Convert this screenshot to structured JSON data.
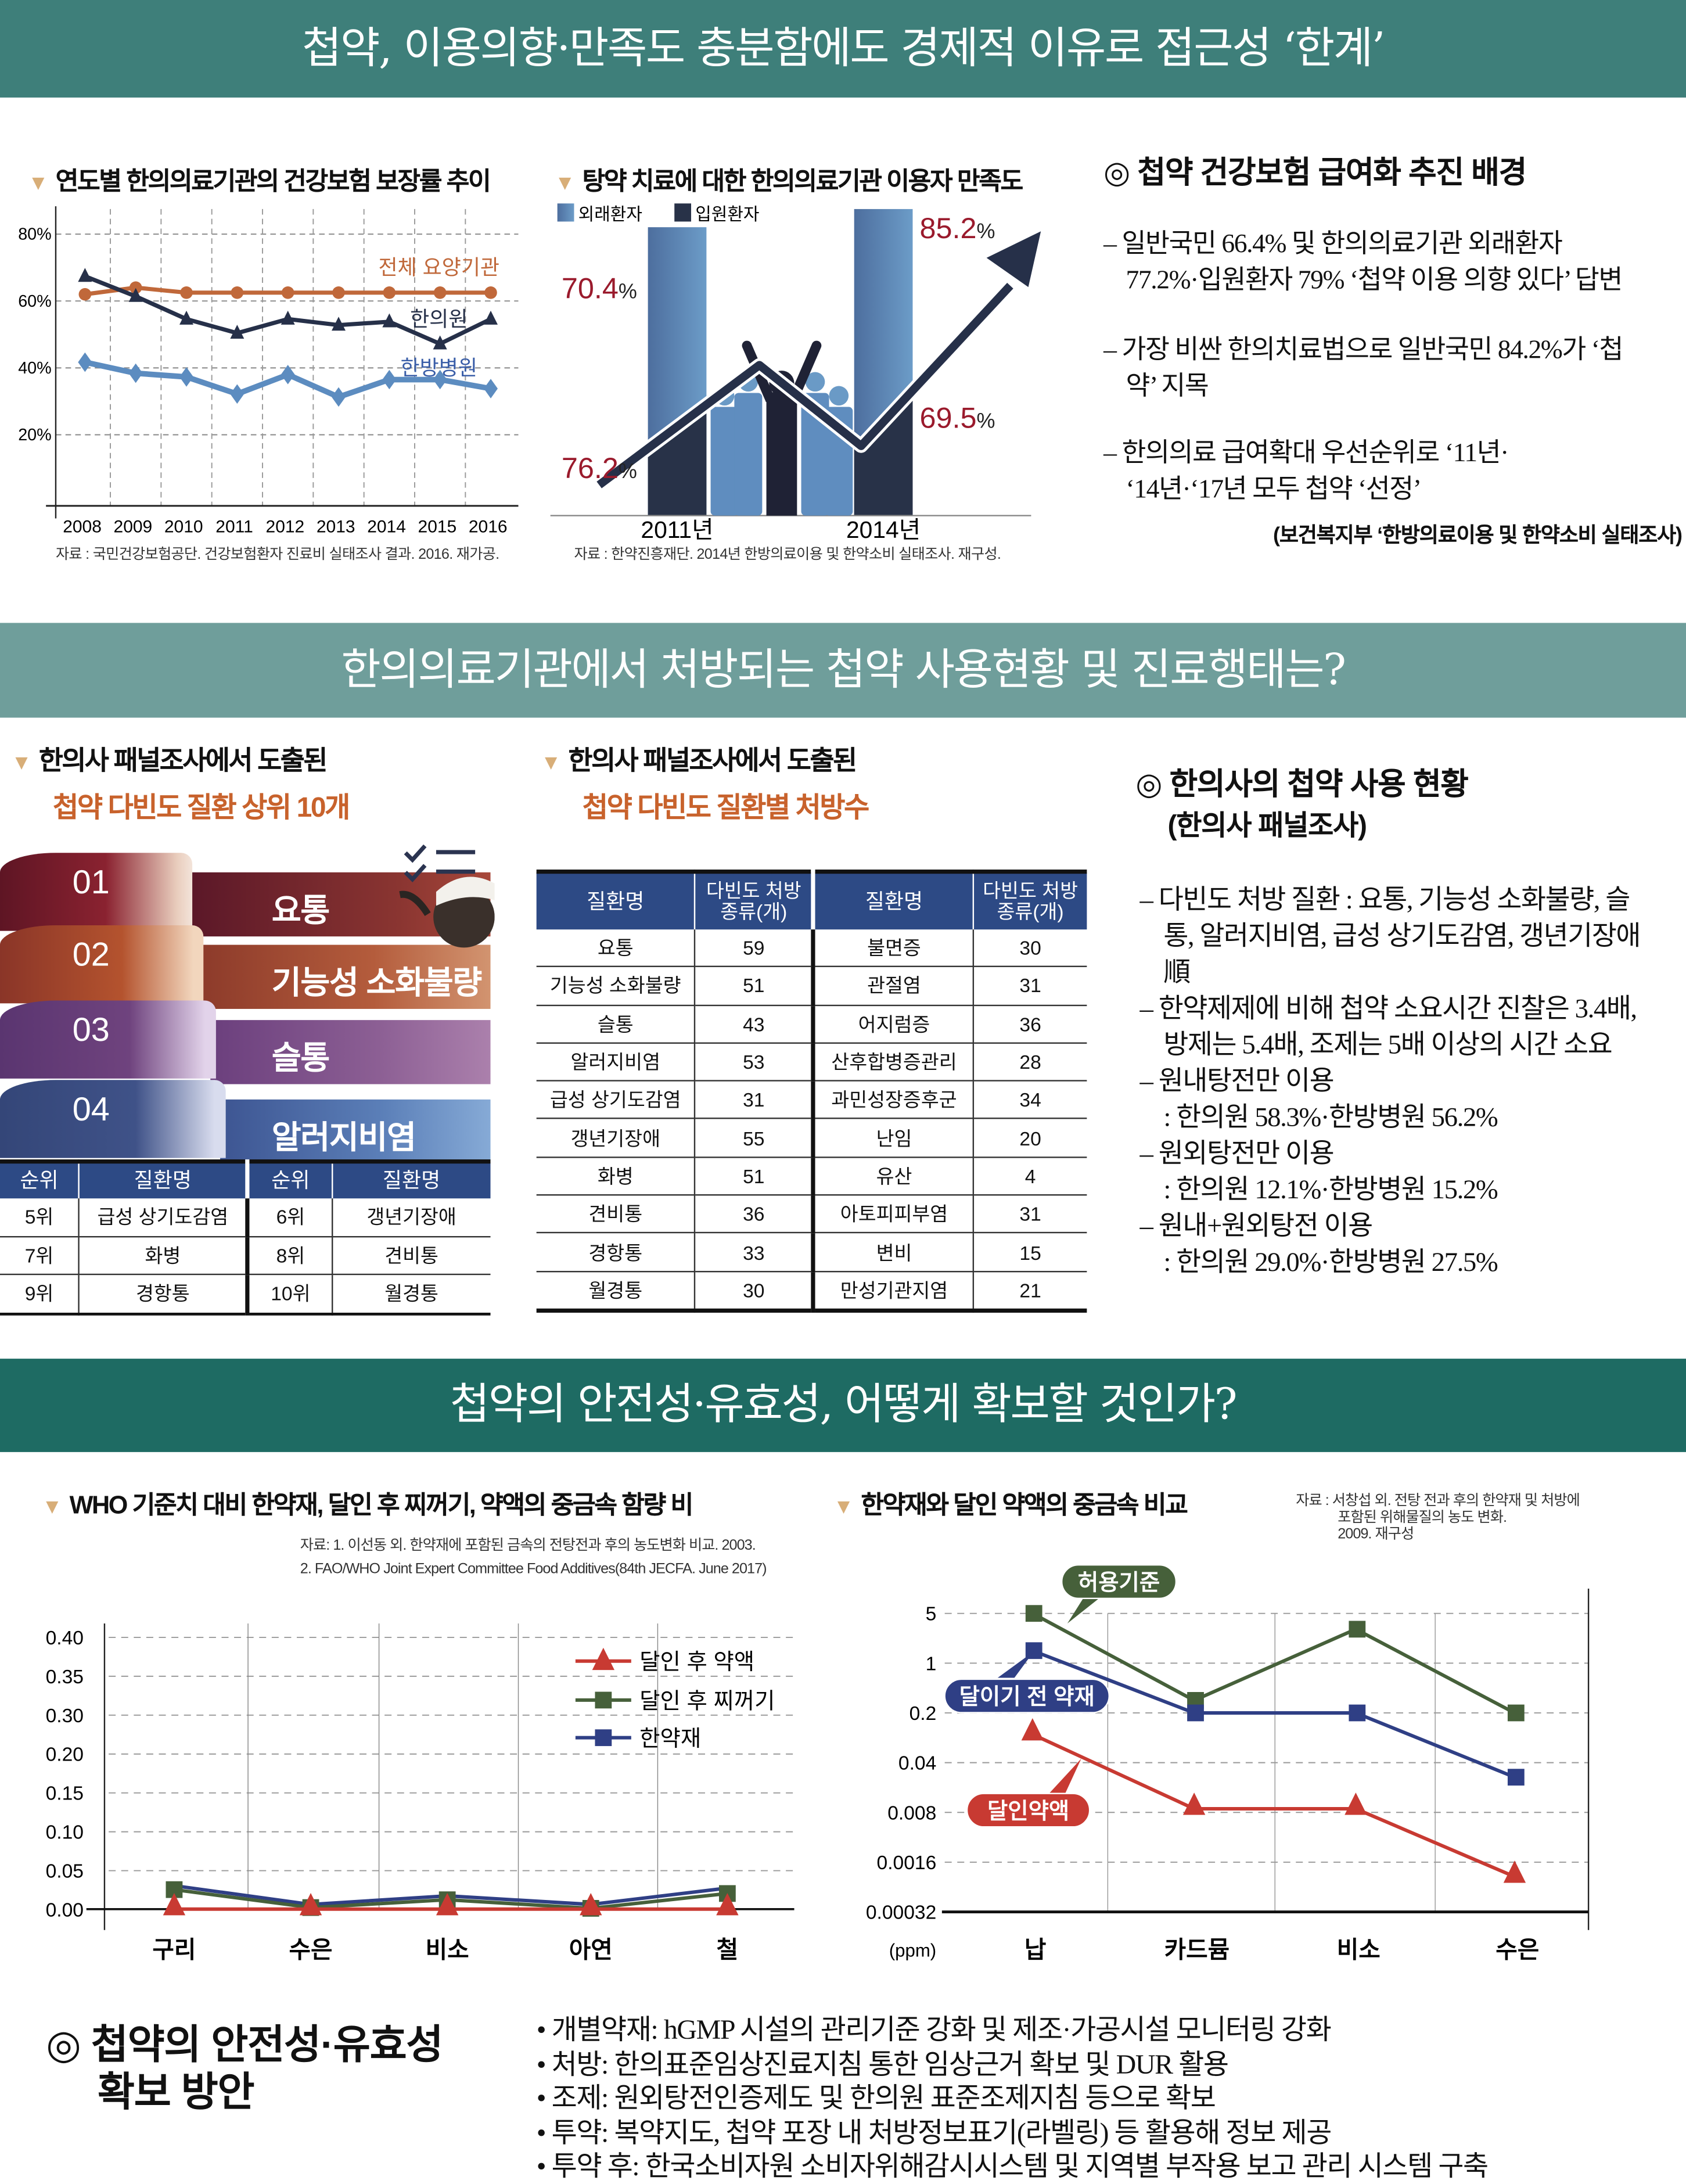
{
  "header1": {
    "title": "첩약, 이용의향·만족도 충분함에도 경제적 이유로 접근성 ‘한계’"
  },
  "header2": {
    "title": "한의의료기관에서 처방되는 첩약 사용현황 및 진료행태는?"
  },
  "header3": {
    "title": "첩약의 안전성·유효성, 어떻게 확보할 것인가?"
  },
  "colors": {
    "header1": "#3e7f7a",
    "header2": "#6f9e9b",
    "header3": "#1e6b63",
    "table_header": "#2d4a85",
    "accent_orange": "#c8622c",
    "value_red": "#9a1a2c",
    "title_marker": "#d8ae78"
  },
  "chart_data": [
    {
      "type": "line",
      "title": "연도별 한의의료기관의 건강보험 보장률 추이",
      "x": [
        "2008",
        "2009",
        "2010",
        "2011",
        "2012",
        "2013",
        "2014",
        "2015",
        "2016"
      ],
      "ytick_labels": [
        "80%",
        "60%",
        "40%",
        "20%"
      ],
      "yticks": [
        80,
        60,
        40,
        20
      ],
      "ylim": [
        0,
        85
      ],
      "grid": true,
      "series": [
        {
          "name": "전체 요양기관",
          "color": "#c0683a",
          "marker": "circle",
          "values": [
            62,
            64,
            62.5,
            62.5,
            62.5,
            62.5,
            62.5,
            62.5,
            62.5
          ]
        },
        {
          "name": "한의원",
          "color": "#263049",
          "marker": "triangle",
          "values": [
            67.4,
            61.4,
            54.6,
            50.4,
            54.6,
            52.8,
            53.8,
            47.2,
            54.6
          ]
        },
        {
          "name": "한방병원",
          "color": "#5c8cc0",
          "label_color": "#3a5ea8",
          "marker": "diamond",
          "values": [
            41.7,
            38.4,
            37.3,
            32.2,
            38,
            31.3,
            36.5,
            36.5,
            33.8
          ]
        }
      ],
      "source": "자료 : 국민건강보험공단. 건강보험환자 진료비 실태조사 결과. 2016. 재가공."
    },
    {
      "type": "bar",
      "title": "탕약 치료에 대한 한의의료기관 이용자 만족도",
      "categories": [
        "2011년",
        "2014년"
      ],
      "unit": "%",
      "series": [
        {
          "name": "외래환자",
          "color": "#5f8dbf",
          "values": [
            70.4,
            85.2
          ]
        },
        {
          "name": "입원환자",
          "color": "#283248",
          "values": [
            76.2,
            69.5
          ]
        }
      ],
      "source": "자료 : 한약진흥재단. 2014년 한방의료이용 및 한약소비 실태조사. 재구성."
    },
    {
      "type": "line",
      "title": "WHO 기준치 대비 한약재, 달인 후 찌꺼기, 약액의 중금속 함량 비",
      "source_lines": [
        "자료: 1. 이선동 외. 한약재에 포함된 금속의 전탕전과 후의 농도변화 비교. 2003.",
        "2. FAO/WHO Joint Expert Committee Food Additives(84th JECFA. June 2017)"
      ],
      "categories": [
        "구리",
        "수은",
        "비소",
        "아연",
        "철"
      ],
      "ytick_labels": [
        "0.40",
        "0.35",
        "0.30",
        "0.20",
        "0.15",
        "0.10",
        "0.05",
        "0.00"
      ],
      "ylim": [
        0,
        0.4
      ],
      "grid": true,
      "legend": "top-right",
      "series": [
        {
          "name": "달인 후 약액",
          "color": "#c83a32",
          "marker": "triangle",
          "values": [
            0,
            0,
            0,
            0,
            0
          ]
        },
        {
          "name": "달인 후 찌꺼기",
          "color": "#46603a",
          "marker": "square",
          "values": [
            0.025,
            0.002,
            0.012,
            0.001,
            0.02
          ]
        },
        {
          "name": "한약재",
          "color": "#2f3f85",
          "marker": "square",
          "values": [
            0.03,
            0.006,
            0.017,
            0.006,
            0.027
          ]
        }
      ]
    },
    {
      "type": "line",
      "title": "한약재와 달인 약액의 중금속 비교",
      "source_lines": [
        "자료 : 서창섭 외. 전탕 전과 후의 한약재 및 처방에",
        "포함된 위해물질의 농도 변화.",
        "2009. 재구성"
      ],
      "categories": [
        "납",
        "카드뮴",
        "비소",
        "수은"
      ],
      "yscale": "log",
      "yticks": [
        5,
        1,
        0.2,
        0.04,
        0.008,
        0.0016,
        0.00032
      ],
      "ytick_labels": [
        "5",
        "1",
        "0.2",
        "0.04",
        "0.008",
        "0.0016",
        "0.00032"
      ],
      "ylim": [
        0.00032,
        5
      ],
      "unit": "(ppm)",
      "grid": true,
      "series": [
        {
          "name": "허용기준",
          "color": "#46603a",
          "marker": "square",
          "values": [
            5,
            0.3,
            3,
            0.2
          ]
        },
        {
          "name": "달이기 전 약재",
          "color": "#2f3f85",
          "marker": "square",
          "values": [
            1.5,
            0.2,
            0.2,
            0.025
          ]
        },
        {
          "name": "달인약액",
          "color": "#c83a32",
          "marker": "triangle",
          "values": [
            0.1,
            0.009,
            0.009,
            0.001
          ]
        }
      ]
    }
  ],
  "background": {
    "title": "◎ 첩약 건강보험 급여화 추진 배경",
    "items": [
      [
        "– 일반국민 66.4% 및 한의의료기관 외래환자",
        "77.2%·입원환자 79% ‘첩약 이용 의향 있다’ 답변"
      ],
      [
        "– 가장 비싼 한의치료법으로 일반국민 84.2%가 ‘첩",
        "약’ 지목"
      ],
      [
        "– 한의의료 급여확대 우선순위로 ‘11년·",
        "‘14년·‘17년 모두 첩약 ‘선정’"
      ]
    ],
    "source": "(보건복지부 ‘한방의료이용 및 한약소비 실태조사)"
  },
  "ranking": {
    "title_line1": "한의사 패널조사에서 도출된",
    "title_line2": "첩약 다빈도 질환 상위 10개",
    "top": [
      {
        "rank": "01",
        "name": "요통"
      },
      {
        "rank": "02",
        "name": "기능성 소화불량"
      },
      {
        "rank": "03",
        "name": "슬통"
      },
      {
        "rank": "04",
        "name": "알러지비염"
      }
    ],
    "table_headers": [
      "순위",
      "질환명",
      "순위",
      "질환명"
    ],
    "table_rows": [
      [
        "5위",
        "급성 상기도감염",
        "6위",
        "갱년기장애"
      ],
      [
        "7위",
        "화병",
        "8위",
        "견비통"
      ],
      [
        "9위",
        "경항통",
        "10위",
        "월경통"
      ]
    ]
  },
  "prescriptions": {
    "title_line1": "한의사 패널조사에서 도출된",
    "title_line2": "첩약 다빈도 질환별 처방수",
    "headers": [
      "질환명",
      "다빈도 처방 종류(개)",
      "질환명",
      "다빈도 처방 종류(개)"
    ],
    "rows": [
      [
        "요통",
        "59",
        "불면증",
        "30"
      ],
      [
        "기능성 소화불량",
        "51",
        "관절염",
        "31"
      ],
      [
        "슬통",
        "43",
        "어지럼증",
        "36"
      ],
      [
        "알러지비염",
        "53",
        "산후합병증관리",
        "28"
      ],
      [
        "급성 상기도감염",
        "31",
        "과민성장증후군",
        "34"
      ],
      [
        "갱년기장애",
        "55",
        "난임",
        "20"
      ],
      [
        "화병",
        "51",
        "유산",
        "4"
      ],
      [
        "견비통",
        "36",
        "아토피피부염",
        "31"
      ],
      [
        "경항통",
        "33",
        "변비",
        "15"
      ],
      [
        "월경통",
        "30",
        "만성기관지염",
        "21"
      ]
    ]
  },
  "usage": {
    "title": "◎ 한의사의 첩약 사용 현황",
    "subtitle": "(한의사 패널조사)",
    "lines": [
      "– 다빈도 처방 질환 : 요통, 기능성 소화불량, 슬",
      "통, 알러지비염, 급성 상기도감염, 갱년기장애",
      "順",
      "– 한약제제에 비해 첩약 소요시간 진찰은 3.4배,",
      "방제는 5.4배, 조제는 5배 이상의 시간 소요",
      "– 원내탕전만 이용",
      ": 한의원 58.3%·한방병원 56.2%",
      "– 원외탕전만 이용",
      ": 한의원 12.1%·한방병원 15.2%",
      "– 원내+원외탕전 이용",
      ": 한의원 29.0%·한방병원 27.5%"
    ]
  },
  "safety": {
    "title_line1": "◎ 첩약의 안전성·유효성",
    "title_line2": "확보 방안",
    "items": [
      "• 개별약재: hGMP 시설의 관리기준 강화 및 제조·가공시설 모니터링 강화",
      "• 처방: 한의표준임상진료지침 통한 임상근거 확보 및 DUR 활용",
      "• 조제: 원외탕전인증제도 및 한의원 표준조제지침 등으로 확보",
      "• 투약: 복약지도, 첩약 포장 내 처방정보표기(라벨링) 등 활용해 정보 제공",
      "• 투약 후: 한국소비자원 소비자위해감시시스템 및 지역별 부작용 보고 관리 시스템 구축"
    ]
  }
}
